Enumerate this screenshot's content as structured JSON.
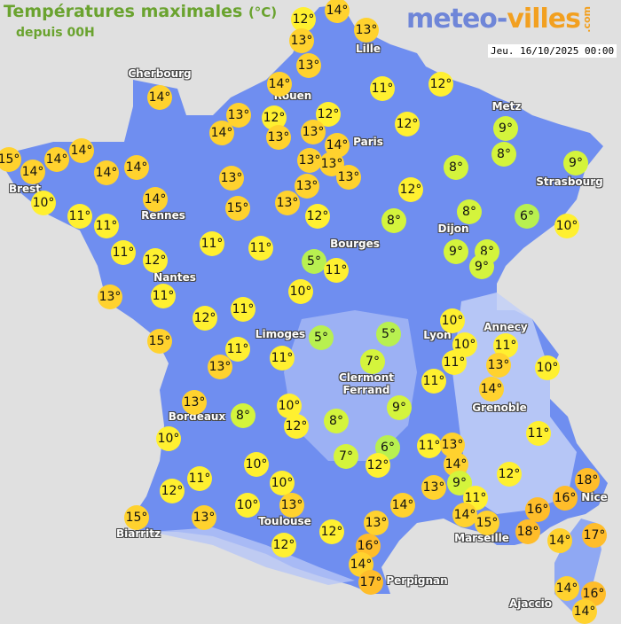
{
  "header": {
    "title": "Températures maximales",
    "unit": "(°C)",
    "subtitle": "depuis 00H",
    "date": "Jeu. 16/10/2025 00:00"
  },
  "logo": {
    "part1": "meteo-",
    "part2": "villes",
    "suffix": ".com"
  },
  "colors": {
    "land": "#6f8ef0",
    "sea": "#e0e0e0",
    "t_cold": "#b8f050",
    "t_cool": "#d4f43c",
    "t_mild": "#fff030",
    "t_warm": "#ffd22e",
    "t_hot": "#ffbd2a"
  },
  "cities": [
    "Lille",
    "Cherbourg",
    "Rouen",
    "Paris",
    "Metz",
    "Strasbourg",
    "Brest",
    "Rennes",
    "Dijon",
    "Bourges",
    "Nantes",
    "Limoges",
    "Annecy",
    "Lyon",
    "Clermont\nFerrand",
    "Grenoble",
    "Bordeaux",
    "Biarritz",
    "Toulouse",
    "Marseille",
    "Nice",
    "Perpignan",
    "Ajaccio"
  ],
  "temperatures": [
    12,
    14,
    13,
    13,
    13,
    14,
    14,
    11,
    12,
    13,
    12,
    12,
    14,
    13,
    13,
    14,
    13,
    13,
    12,
    9,
    8,
    9,
    14,
    14,
    15,
    14,
    14,
    14,
    13,
    13,
    13,
    8,
    12,
    14,
    10,
    11,
    11,
    15,
    13,
    12,
    8,
    8,
    6,
    10,
    11,
    12,
    11,
    11,
    5,
    11,
    9,
    8,
    9,
    13,
    11,
    10,
    12,
    11,
    15,
    5,
    5,
    10,
    10,
    11,
    13,
    10,
    11,
    13,
    11,
    7,
    11,
    11,
    14,
    13,
    8,
    10,
    12,
    8,
    9,
    11,
    10,
    6,
    7,
    12,
    11,
    13,
    14,
    9,
    12,
    10,
    11,
    10,
    12,
    13,
    11,
    14,
    15,
    14,
    13,
    10,
    13,
    15,
    16,
    18,
    16,
    18,
    13,
    12,
    12,
    14,
    17,
    16,
    14,
    17,
    14,
    16,
    14
  ],
  "degree_suffix": "°"
}
